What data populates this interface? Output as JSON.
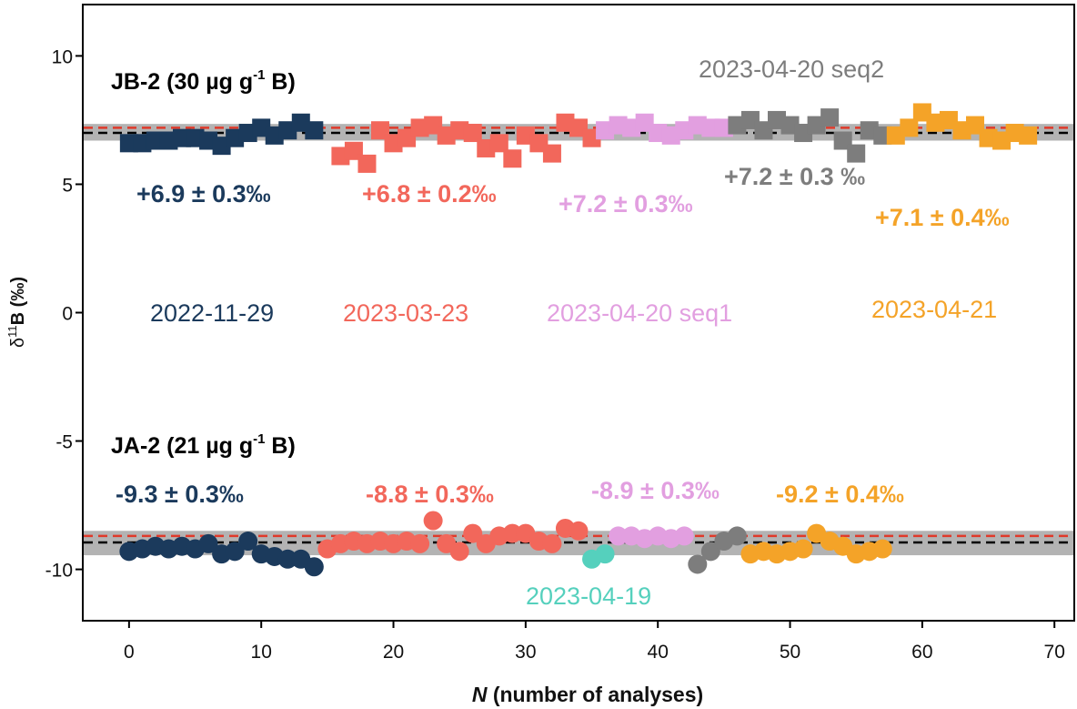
{
  "chart_data": {
    "type": "scatter",
    "title": "",
    "xlabel_italic": "N",
    "xlabel_rest": " (number of analyses)",
    "ylabel_delta": "δ",
    "ylabel_sup": "11",
    "ylabel_rest": "B (‰)",
    "xlim": [
      -3.5,
      71.5
    ],
    "ylim": [
      -12,
      12
    ],
    "xticks": [
      0,
      10,
      20,
      30,
      40,
      50,
      60,
      70
    ],
    "xtick_labels": [
      "0",
      "10",
      "20",
      "30",
      "40",
      "50",
      "60",
      "70"
    ],
    "yticks": [
      10,
      5,
      0,
      -5,
      -10
    ],
    "ytick_labels": [
      "10",
      "5",
      "0",
      "-5",
      "-10"
    ],
    "reference_lines": [
      {
        "sample": "JB-2",
        "black_dashed": 7.0,
        "red_dashed": 7.2,
        "gray_band": [
          6.7,
          7.35
        ]
      },
      {
        "sample": "JA-2",
        "black_dashed": -8.95,
        "red_dashed": -8.7,
        "gray_band": [
          -9.45,
          -8.5
        ]
      }
    ],
    "colors": {
      "2022-11-29": "#1b3a5c",
      "2023-03-23": "#f2675b",
      "2023-04-20 seq1": "#e29fe0",
      "2023-04-20 seq2": "#7d7d7d",
      "2023-04-21": "#f4a328",
      "2023-04-19": "#55d0bd"
    },
    "series": [
      {
        "name": "2022-11-29",
        "sample": "JB-2",
        "marker": "square",
        "x": [
          0,
          1,
          2,
          3,
          4,
          5,
          6,
          7,
          8,
          9,
          10,
          11,
          12,
          13,
          14
        ],
        "y": [
          6.6,
          6.6,
          6.7,
          6.7,
          6.8,
          6.8,
          6.7,
          6.5,
          6.8,
          7.0,
          7.2,
          6.9,
          7.1,
          7.4,
          7.1
        ]
      },
      {
        "name": "2023-03-23",
        "sample": "JB-2",
        "marker": "square",
        "x": [
          16,
          17,
          18,
          19,
          20,
          21,
          22,
          23,
          24,
          25,
          26,
          27,
          28,
          29,
          30,
          31,
          32,
          33,
          34,
          35
        ],
        "y": [
          6.1,
          6.3,
          5.8,
          7.1,
          6.6,
          6.8,
          7.2,
          7.3,
          6.9,
          7.1,
          7.0,
          6.4,
          6.6,
          6.0,
          6.9,
          6.6,
          6.2,
          7.4,
          7.2,
          6.8
        ]
      },
      {
        "name": "2023-04-20 seq1",
        "sample": "JB-2",
        "marker": "square",
        "x": [
          36,
          37,
          38,
          39,
          40,
          41,
          42,
          43,
          44,
          45
        ],
        "y": [
          7.1,
          7.3,
          7.2,
          7.4,
          7.0,
          6.9,
          7.1,
          7.3,
          7.2,
          7.2
        ]
      },
      {
        "name": "2023-04-20 seq2",
        "sample": "JB-2",
        "marker": "square",
        "x": [
          46,
          47,
          48,
          49,
          50,
          51,
          52,
          53,
          54,
          55,
          56,
          57
        ],
        "y": [
          7.3,
          7.5,
          7.1,
          7.5,
          7.3,
          7.0,
          7.3,
          7.6,
          6.7,
          6.2,
          7.1,
          6.9
        ]
      },
      {
        "name": "2023-04-21",
        "sample": "JB-2",
        "marker": "square",
        "x": [
          58,
          59,
          60,
          61,
          62,
          63,
          64,
          65,
          66,
          67,
          68
        ],
        "y": [
          6.9,
          7.2,
          7.8,
          7.4,
          7.5,
          7.1,
          7.3,
          6.8,
          6.7,
          7.0,
          6.9
        ]
      },
      {
        "name": "2022-11-29",
        "sample": "JA-2",
        "marker": "circle",
        "x": [
          0,
          1,
          2,
          3,
          4,
          5,
          6,
          7,
          8,
          9,
          10,
          11,
          12,
          13,
          14
        ],
        "y": [
          -9.3,
          -9.2,
          -9.1,
          -9.2,
          -9.1,
          -9.2,
          -9.0,
          -9.4,
          -9.3,
          -8.9,
          -9.4,
          -9.5,
          -9.6,
          -9.6,
          -9.9
        ]
      },
      {
        "name": "2023-03-23",
        "sample": "JA-2",
        "marker": "circle",
        "x": [
          15,
          16,
          17,
          18,
          19,
          20,
          21,
          22,
          23,
          24,
          25,
          26,
          27,
          28,
          29,
          30,
          31,
          32,
          33,
          34
        ],
        "y": [
          -9.2,
          -9.0,
          -8.9,
          -9.0,
          -8.9,
          -9.0,
          -8.9,
          -9.0,
          -8.1,
          -9.0,
          -9.3,
          -8.6,
          -9.0,
          -8.7,
          -8.6,
          -8.6,
          -8.9,
          -9.0,
          -8.4,
          -8.5
        ]
      },
      {
        "name": "2023-04-19",
        "sample": "JA-2",
        "marker": "circle",
        "x": [
          35,
          36
        ],
        "y": [
          -9.6,
          -9.4
        ]
      },
      {
        "name": "2023-04-20 seq1",
        "sample": "JA-2",
        "marker": "circle",
        "x": [
          37,
          38,
          39,
          40,
          41,
          42
        ],
        "y": [
          -8.7,
          -8.7,
          -8.8,
          -8.7,
          -8.8,
          -8.7
        ]
      },
      {
        "name": "2023-04-20 seq2",
        "sample": "JA-2",
        "marker": "circle",
        "x": [
          43,
          44,
          45,
          46
        ],
        "y": [
          -9.8,
          -9.3,
          -8.9,
          -8.7
        ]
      },
      {
        "name": "2023-04-21",
        "sample": "JA-2",
        "marker": "circle",
        "x": [
          47,
          48,
          49,
          50,
          51,
          52,
          53,
          54,
          55,
          56,
          57
        ],
        "y": [
          -9.4,
          -9.3,
          -9.4,
          -9.3,
          -9.2,
          -8.6,
          -8.9,
          -9.1,
          -9.4,
          -9.3,
          -9.2
        ]
      }
    ],
    "annotations": {
      "sample_jb2": {
        "text_main": "JB-2 (30 µg g",
        "text_sup": "-1",
        "text_end": " B)"
      },
      "sample_ja2": {
        "text_main": "JA-2 (21 µg g",
        "text_sup": "-1",
        "text_end": " B)"
      },
      "session_labels": [
        {
          "text": "2022-11-29",
          "color": "#1b3a5c"
        },
        {
          "text": "2023-03-23",
          "color": "#f2675b"
        },
        {
          "text": "2023-04-20 seq1",
          "color": "#e29fe0"
        },
        {
          "text": "2023-04-21",
          "color": "#f4a328"
        },
        {
          "text": "2023-04-20 seq2",
          "color": "#7d7d7d"
        },
        {
          "text": "2023-04-19",
          "color": "#55d0bd"
        }
      ],
      "jb2_means": [
        {
          "text": "+6.9 ± 0.3‰",
          "color": "#1b3a5c"
        },
        {
          "text": "+6.8 ± 0.2‰",
          "color": "#f2675b"
        },
        {
          "text": "+7.2 ± 0.3‰",
          "color": "#e29fe0"
        },
        {
          "text": "+7.2 ± 0.3 ‰",
          "color": "#7d7d7d"
        },
        {
          "text": "+7.1 ± 0.4‰",
          "color": "#f4a328"
        }
      ],
      "ja2_means": [
        {
          "text": "-9.3 ± 0.3‰",
          "color": "#1b3a5c"
        },
        {
          "text": "-8.8 ± 0.3‰",
          "color": "#f2675b"
        },
        {
          "text": "-8.9 ± 0.3‰",
          "color": "#e29fe0"
        },
        {
          "text": "-9.2 ± 0.4‰",
          "color": "#f4a328"
        }
      ]
    }
  }
}
